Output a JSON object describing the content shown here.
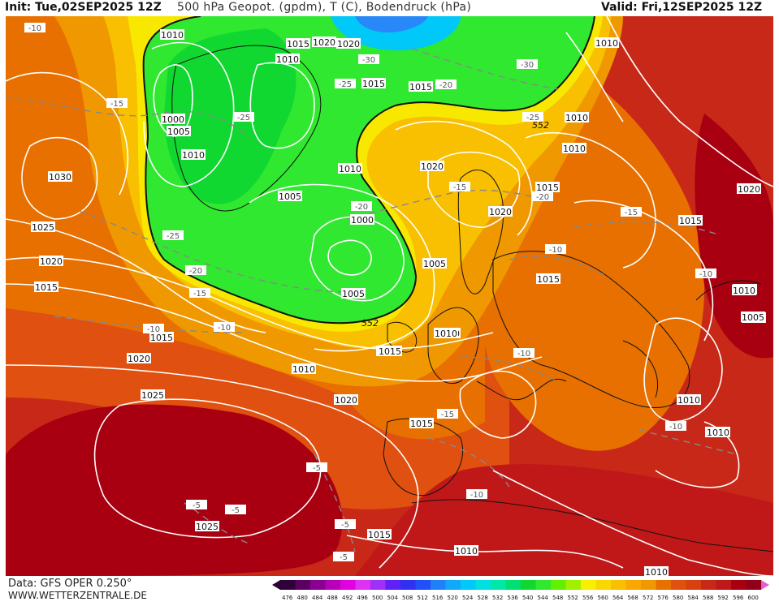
{
  "header": {
    "init": "Init: Tue,02SEP2025 12Z",
    "title": "500 hPa Geopot. (gpdm), T (C), Bodendruck (hPa)",
    "valid": "Valid: Fri,12SEP2025 12Z"
  },
  "footer": {
    "data_source": "Data: GFS OPER 0.250°",
    "website": "WWW.WETTERZENTRALE.DE"
  },
  "colors": {
    "deep_green": "#10d830",
    "green": "#30e830",
    "lime": "#a0f000",
    "yellow": "#f8e800",
    "gold": "#f8c000",
    "orange": "#f09800",
    "dark_orange": "#e87000",
    "red_orange": "#d84010",
    "red": "#c01818",
    "dark_red": "#a00010",
    "cyan": "#00c8f8",
    "blue": "#2888f8"
  },
  "color_scale": {
    "labels": [
      "476",
      "480",
      "484",
      "488",
      "492",
      "496",
      "500",
      "504",
      "508",
      "512",
      "516",
      "520",
      "524",
      "528",
      "532",
      "536",
      "540",
      "544",
      "548",
      "552",
      "556",
      "560",
      "564",
      "568",
      "572",
      "576",
      "580",
      "584",
      "588",
      "592",
      "596",
      "600"
    ],
    "colors": [
      "#300038",
      "#5a0060",
      "#8a0090",
      "#b800b8",
      "#e000e0",
      "#e030f0",
      "#a030f8",
      "#6020f8",
      "#3030f0",
      "#2050f8",
      "#2080f8",
      "#10a8f8",
      "#00c8f8",
      "#00e0e0",
      "#00e8a8",
      "#00e070",
      "#10d830",
      "#30e830",
      "#60f000",
      "#a0f000",
      "#f8f000",
      "#f8d800",
      "#f8c000",
      "#f8a800",
      "#f09800",
      "#e87000",
      "#e05010",
      "#d84010",
      "#c82818",
      "#c01818",
      "#a80010",
      "#900018"
    ]
  },
  "pressure_labels": [
    "1010",
    "1015",
    "1020",
    "1010",
    "1015",
    "1010",
    "1000",
    "1005",
    "1010",
    "1030",
    "1025",
    "1020",
    "1015",
    "1015",
    "1020",
    "1025",
    "1010",
    "1015",
    "1005",
    "1015",
    "1010",
    "1005",
    "1000",
    "1010",
    "1020",
    "1015",
    "1020",
    "1005",
    "1010",
    "1015",
    "1010",
    "1000",
    "1005",
    "1010",
    "1020",
    "1015",
    "1015",
    "1010",
    "1020",
    "1015",
    "1010",
    "1025",
    "1010",
    "1015",
    "1010",
    "1005",
    "1010",
    "1010",
    "1010",
    "1020"
  ],
  "temp_labels": [
    "-10",
    "-30",
    "-25",
    "-20",
    "-30",
    "-15",
    "-25",
    "-25",
    "-15",
    "-20",
    "-20",
    "-15",
    "-15",
    "-25",
    "-20",
    "-10",
    "-10",
    "-10",
    "-10",
    "-10",
    "-15",
    "-5",
    "-5",
    "-5",
    "-5",
    "-5",
    "-10",
    "-10"
  ],
  "contour_552": "552"
}
